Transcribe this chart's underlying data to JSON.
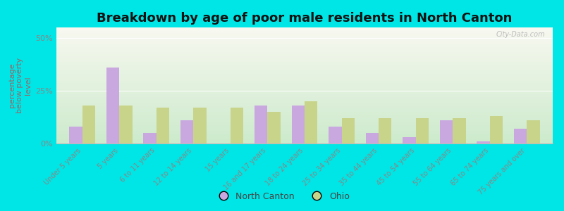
{
  "title": "Breakdown by age of poor male residents in North Canton",
  "ylabel": "percentage\nbelow poverty\nlevel",
  "categories": [
    "Under 5 years",
    "5 years",
    "6 to 11 years",
    "12 to 14 years",
    "15 years",
    "16 and 17 years",
    "18 to 24 years",
    "25 to 34 years",
    "35 to 44 years",
    "45 to 54 years",
    "55 to 64 years",
    "65 to 74 years",
    "75 years and over"
  ],
  "north_canton": [
    8,
    36,
    5,
    11,
    0,
    18,
    18,
    8,
    5,
    3,
    11,
    1,
    7
  ],
  "ohio": [
    18,
    18,
    17,
    17,
    17,
    15,
    20,
    12,
    12,
    12,
    12,
    13,
    11
  ],
  "north_canton_color": "#c9a8e0",
  "ohio_color": "#c8d48a",
  "background_top": "#f8f8f0",
  "background_bottom": "#cceacc",
  "ylim": [
    0,
    55
  ],
  "yticks": [
    0,
    25,
    50
  ],
  "ytick_labels": [
    "0%",
    "25%",
    "50%"
  ],
  "bg_outer": "#00e5e5",
  "title_fontsize": 13,
  "label_fontsize": 7,
  "axis_label_fontsize": 8,
  "ylabel_color": "#996666",
  "tick_color": "#888888",
  "watermark": "City-Data.com",
  "legend_label_nc": "North Canton",
  "legend_label_ohio": "Ohio"
}
